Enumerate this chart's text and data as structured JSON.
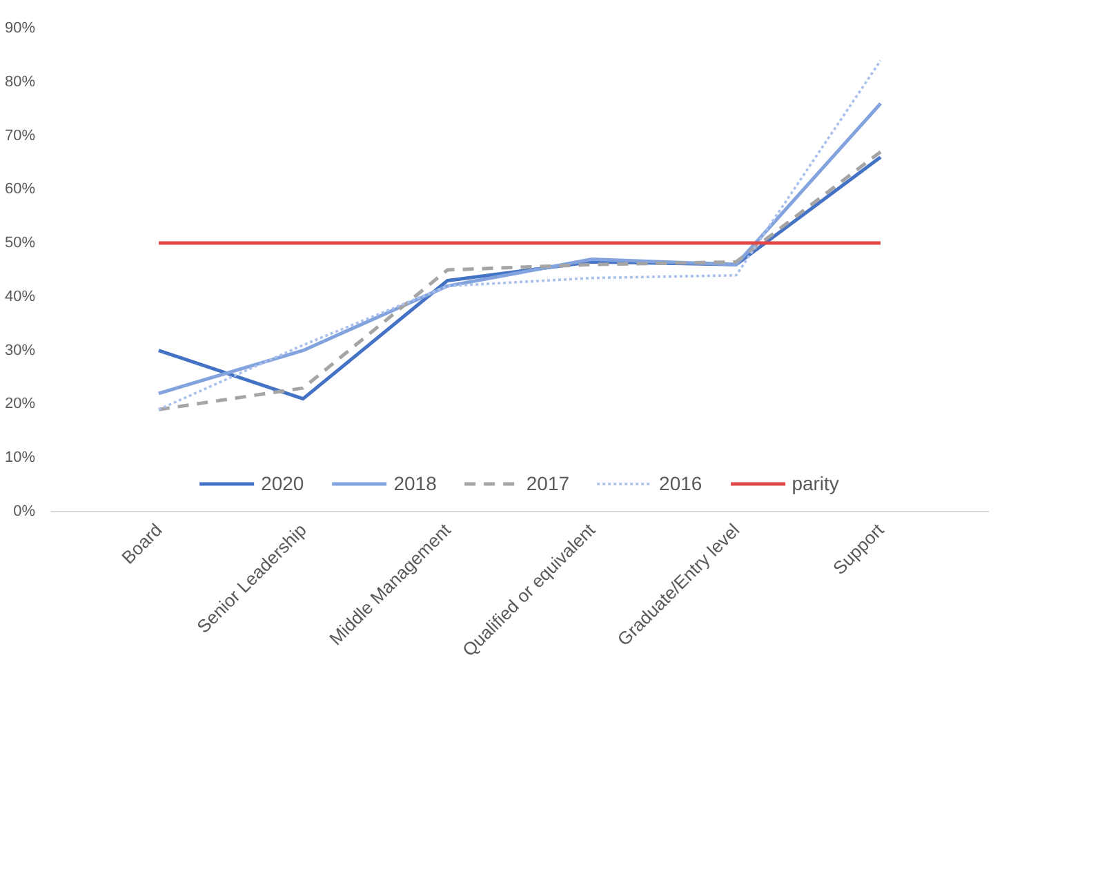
{
  "chart_data": {
    "type": "line",
    "categories": [
      "Board",
      "Senior Leadership",
      "Middle Management",
      "Qualified or equivalent",
      "Graduate/Entry level",
      "Support"
    ],
    "series": [
      {
        "name": "2020",
        "color": "#4472c4",
        "line_style": "solid",
        "values": [
          30,
          21,
          43,
          46.5,
          46,
          66
        ]
      },
      {
        "name": "2018",
        "color": "#82a3dd",
        "line_style": "solid",
        "values": [
          22,
          30,
          42,
          47,
          46,
          76
        ]
      },
      {
        "name": "2017",
        "color": "#a5a5a5",
        "line_style": "dashed",
        "values": [
          19,
          23,
          45,
          46,
          46.5,
          67
        ]
      },
      {
        "name": "2016",
        "color": "#a9c0ec",
        "line_style": "dotted",
        "values": [
          19,
          31,
          42,
          43.5,
          44,
          84
        ]
      },
      {
        "name": "parity",
        "color": "#e04848",
        "line_style": "solid",
        "values": [
          50,
          50,
          50,
          50,
          50,
          50
        ]
      }
    ],
    "ylim": [
      0,
      90
    ],
    "yticks": [
      {
        "value": 0,
        "label": "0%"
      },
      {
        "value": 10,
        "label": "10%"
      },
      {
        "value": 20,
        "label": "20%"
      },
      {
        "value": 30,
        "label": "30%"
      },
      {
        "value": 40,
        "label": "40%"
      },
      {
        "value": 50,
        "label": "50%"
      },
      {
        "value": 60,
        "label": "60%"
      },
      {
        "value": 70,
        "label": "70%"
      },
      {
        "value": 80,
        "label": "80%"
      },
      {
        "value": 90,
        "label": "90%"
      }
    ],
    "grid": false,
    "legend": "bottom",
    "marker": "none"
  }
}
